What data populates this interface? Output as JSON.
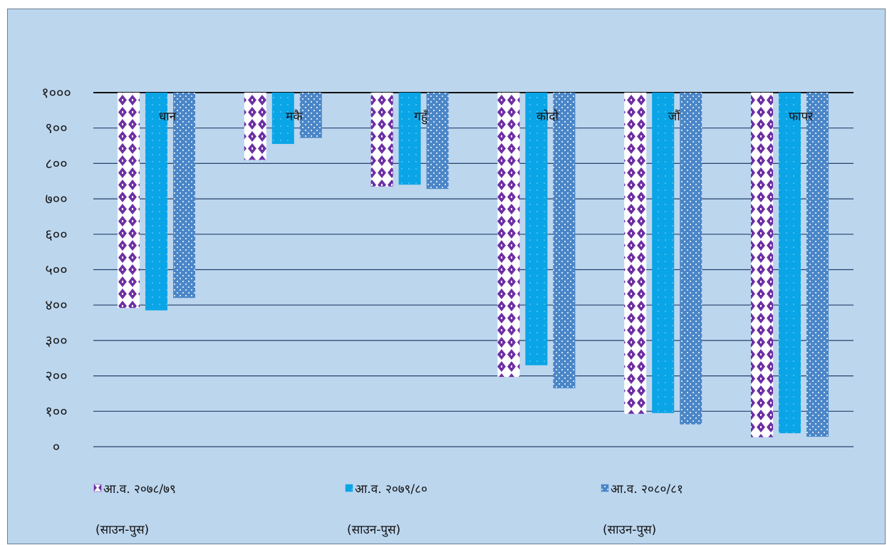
{
  "chart_data": {
    "type": "bar",
    "orientation": "inverted",
    "categories": [
      "धान",
      "मकै",
      "गहुँ",
      "कोदो",
      "जौं",
      "फापर"
    ],
    "series": [
      {
        "name": "आ.व. २०७८/७९",
        "name_line2": "(साउन-पुस)",
        "values": [
          392,
          810,
          735,
          197,
          93,
          27
        ],
        "color": "#6e2fa3",
        "pattern": "diamond"
      },
      {
        "name": "आ.व. २०७९/८०",
        "name_line2": "(साउन-पुस)",
        "values": [
          385,
          855,
          740,
          230,
          95,
          38
        ],
        "color": "#0aa5e6",
        "pattern": "solid-dots"
      },
      {
        "name": "आ.व. २०८०/८१",
        "name_line2": "(साउन-पुस)",
        "values": [
          420,
          872,
          728,
          165,
          63,
          28
        ],
        "color": "#4a86c8",
        "pattern": "dots"
      }
    ],
    "yticks": [
      "०",
      "१००",
      "२००",
      "३००",
      "४००",
      "५००",
      "६००",
      "७००",
      "८००",
      "९००",
      "१०००"
    ],
    "ylim": [
      0,
      1000
    ],
    "grid": true,
    "legend_position": "bottom"
  }
}
